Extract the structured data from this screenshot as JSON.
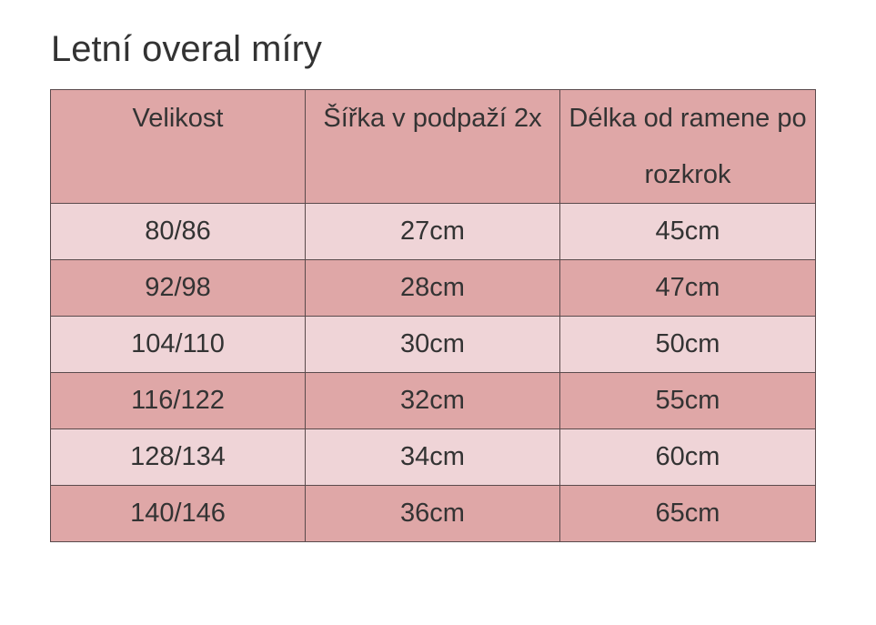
{
  "title": "Letní overal míry",
  "table": {
    "headers": [
      "Velikost",
      "Šířka v podpaží 2x",
      "Délka od ramene po rozkrok"
    ],
    "rows": [
      [
        "80/86",
        "27cm",
        "45cm"
      ],
      [
        "92/98",
        "28cm",
        "47cm"
      ],
      [
        "104/110",
        "30cm",
        "50cm"
      ],
      [
        "116/122",
        "32cm",
        "55cm"
      ],
      [
        "128/134",
        "34cm",
        "60cm"
      ],
      [
        "140/146",
        "36cm",
        "65cm"
      ]
    ]
  },
  "colors": {
    "header_bg": "#dfa7a7",
    "row_light": "#efd4d7",
    "row_dark": "#dfa7a7",
    "border": "#5a4a4c",
    "text": "#333333"
  }
}
